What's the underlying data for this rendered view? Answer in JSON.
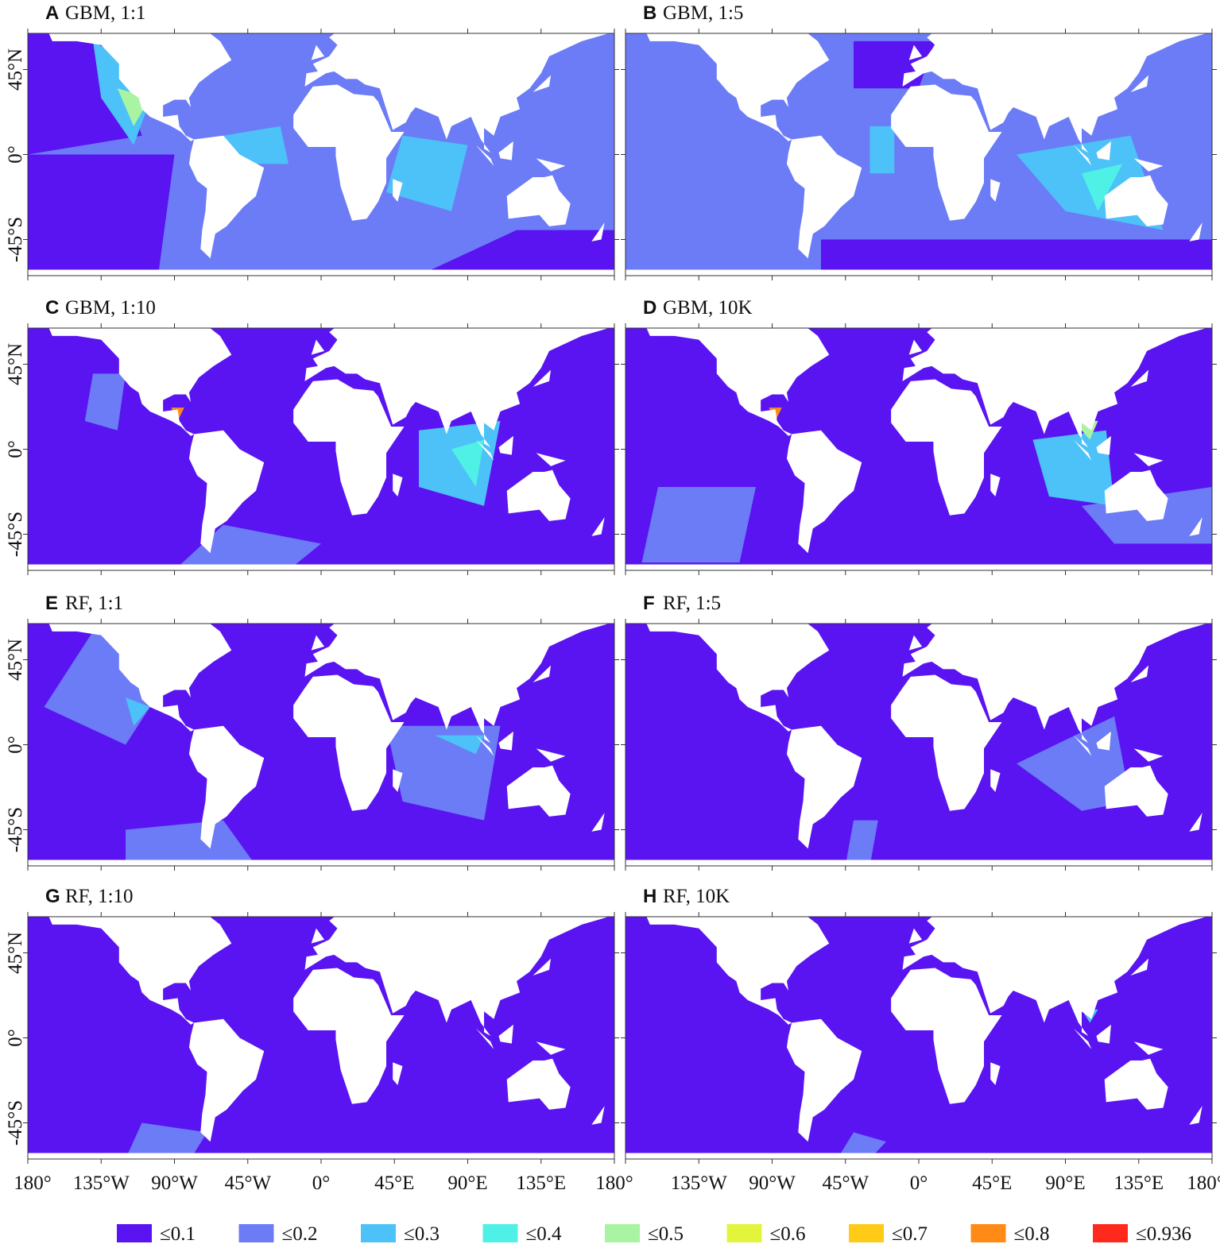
{
  "panels": [
    {
      "letter": "A",
      "title": "GBM, 1:1"
    },
    {
      "letter": "B",
      "title": "GBM, 1:5"
    },
    {
      "letter": "C",
      "title": "GBM, 1:10"
    },
    {
      "letter": "D",
      "title": "GBM, 10K"
    },
    {
      "letter": "E",
      "title": "RF, 1:1"
    },
    {
      "letter": "F",
      "title": "RF, 1:5"
    },
    {
      "letter": "G",
      "title": "RF, 1:10"
    },
    {
      "letter": "H",
      "title": "RF, 10K"
    }
  ],
  "y_tick_labels": [
    "45°N",
    "0°",
    "-45°S"
  ],
  "x_tick_labels_left": [
    "180°",
    "135°W",
    "90°W",
    "45°W",
    "0°",
    "45°E",
    "90°E",
    "135°E",
    "180°"
  ],
  "x_tick_labels_right": [
    "135°W",
    "90°W",
    "45°W",
    "0°",
    "45°E",
    "90°E",
    "135°E",
    "180°"
  ],
  "legend": [
    {
      "label": "≤0.1",
      "color": "#5a14f2"
    },
    {
      "label": "≤0.2",
      "color": "#6b7cf6"
    },
    {
      "label": "≤0.3",
      "color": "#4dc2f8"
    },
    {
      "label": "≤0.4",
      "color": "#4ff0e6"
    },
    {
      "label": "≤0.5",
      "color": "#a9f4a2"
    },
    {
      "label": "≤0.6",
      "color": "#e2f53c"
    },
    {
      "label": "≤0.7",
      "color": "#ffcb16"
    },
    {
      "label": "≤0.8",
      "color": "#ff8b16"
    },
    {
      "label": "≤0.936",
      "color": "#ff2a1c"
    }
  ]
}
